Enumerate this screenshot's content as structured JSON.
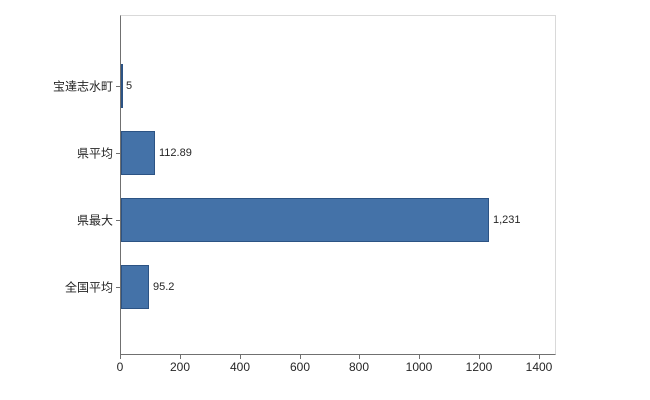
{
  "chart_data": {
    "type": "bar",
    "orientation": "horizontal",
    "title": "",
    "categories": [
      "宝達志水町",
      "県平均",
      "県最大",
      "全国平均"
    ],
    "values": [
      5,
      112.89,
      1231,
      95.2
    ],
    "value_labels": [
      "5",
      "112.89",
      "1,231",
      "95.2"
    ],
    "x_ticks": [
      0,
      200,
      400,
      600,
      800,
      1000,
      1200,
      1400
    ],
    "x_tick_labels": [
      "0",
      "200",
      "400",
      "600",
      "800",
      "1000",
      "1200",
      "1400"
    ],
    "xlim": [
      0,
      1450
    ],
    "grid": false,
    "legend": false,
    "bar_color": "#4472a8",
    "bar_border_color": "#2c5384",
    "axis_color": "#707070",
    "frame_color": "#d9d9d9",
    "label_color": "#262626"
  }
}
